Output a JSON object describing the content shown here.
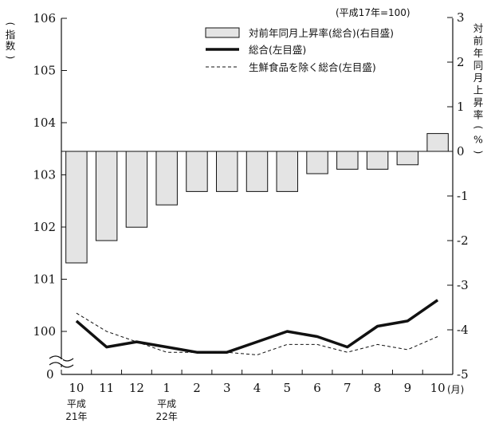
{
  "chart_data": {
    "type": "bar+line",
    "note": "(平成17年=100)",
    "left_axis": {
      "label_chars": [
        "(",
        "指",
        "数",
        ")"
      ],
      "ticks": [
        {
          "value": 106,
          "label": "106"
        },
        {
          "value": 105,
          "label": "105"
        },
        {
          "value": 104,
          "label": "104"
        },
        {
          "value": 103,
          "label": "103"
        },
        {
          "value": 102,
          "label": "102"
        },
        {
          "value": 101,
          "label": "101"
        },
        {
          "value": 100,
          "label": "100"
        }
      ],
      "origin_label": "0",
      "break": true
    },
    "right_axis": {
      "label_chars": [
        "対",
        "前",
        "年",
        "同",
        "月",
        "上",
        "昇",
        "率",
        "(",
        "%",
        ")"
      ],
      "ticks": [
        {
          "value": 3,
          "label": "3"
        },
        {
          "value": 2,
          "label": "2"
        },
        {
          "value": 1,
          "label": "1"
        },
        {
          "value": 0,
          "label": "0"
        },
        {
          "value": -1,
          "label": "-1"
        },
        {
          "value": -2,
          "label": "-2"
        },
        {
          "value": -3,
          "label": "-3"
        },
        {
          "value": -4,
          "label": "-4"
        },
        {
          "value": -5,
          "label": "-5"
        }
      ]
    },
    "categories": [
      "10",
      "11",
      "12",
      "1",
      "2",
      "3",
      "4",
      "5",
      "6",
      "7",
      "8",
      "9",
      "10"
    ],
    "x_unit": "(月)",
    "era_labels": [
      {
        "index": 0,
        "line1": "平成",
        "line2": "21年"
      },
      {
        "index": 3,
        "line1": "平成",
        "line2": "22年"
      }
    ],
    "legend": [
      {
        "key": "bar",
        "label": "対前年同月上昇率(総合)(右目盛)"
      },
      {
        "key": "total",
        "label": "総合(左目盛)"
      },
      {
        "key": "core",
        "label": "生鮮食品を除く総合(左目盛)"
      }
    ],
    "series": [
      {
        "key": "bar",
        "axis": "right",
        "style": "bar",
        "color": "#e4e4e4",
        "values": [
          -2.5,
          -2.0,
          -1.7,
          -1.2,
          -0.9,
          -0.9,
          -0.9,
          -0.9,
          -0.5,
          -0.4,
          -0.4,
          -0.3,
          0.4
        ]
      },
      {
        "key": "total",
        "axis": "left",
        "style": "solid-thick",
        "color": "#111111",
        "values": [
          100.2,
          99.7,
          99.8,
          99.7,
          99.6,
          99.6,
          99.8,
          100.0,
          99.9,
          99.7,
          100.1,
          100.2,
          100.6
        ]
      },
      {
        "key": "core",
        "axis": "left",
        "style": "dashed",
        "color": "#111111",
        "values": [
          100.35,
          100.0,
          99.8,
          99.6,
          99.6,
          99.6,
          99.55,
          99.75,
          99.75,
          99.6,
          99.75,
          99.65,
          99.9
        ]
      }
    ]
  }
}
